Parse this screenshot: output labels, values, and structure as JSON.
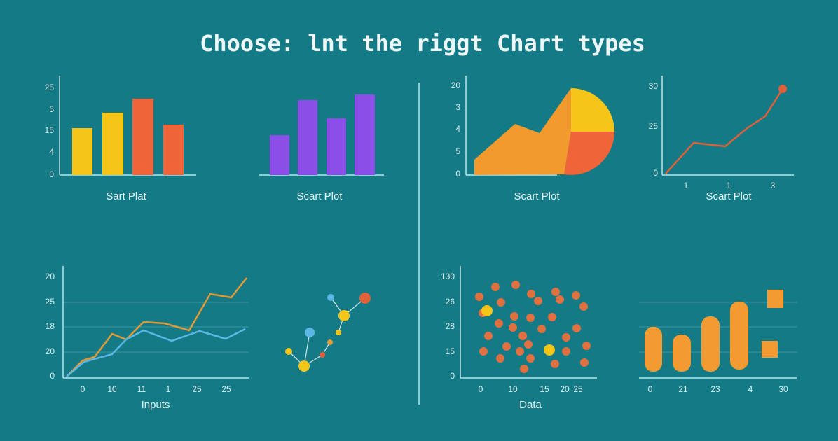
{
  "title": "Choose: lnt the riggt Chart types",
  "panels": [
    {
      "caption": "Sart Plat",
      "y_labels": [
        "25",
        "5",
        "15",
        "4",
        "0"
      ]
    },
    {
      "caption": "Scart Plot"
    },
    {
      "caption": "Scart Plot",
      "y_labels": [
        "20",
        "3",
        "4",
        "5",
        "0"
      ]
    },
    {
      "caption": "Scart Plot",
      "y_labels": [
        "30",
        "25",
        "0"
      ],
      "x_labels": [
        "1",
        "1",
        "3"
      ]
    },
    {
      "caption": "Inputs",
      "y_labels": [
        "20",
        "25",
        "18",
        "20",
        "0"
      ],
      "x_labels": [
        "0",
        "10",
        "11",
        "1",
        "25",
        "25"
      ]
    },
    {},
    {
      "caption": "Data",
      "y_labels": [
        "130",
        "26",
        "28",
        "15",
        "0"
      ],
      "x_labels": [
        "0",
        "10",
        "15",
        "20",
        "25"
      ]
    },
    {
      "x_labels": [
        "0",
        "21",
        "23",
        "4",
        "30"
      ]
    }
  ]
}
